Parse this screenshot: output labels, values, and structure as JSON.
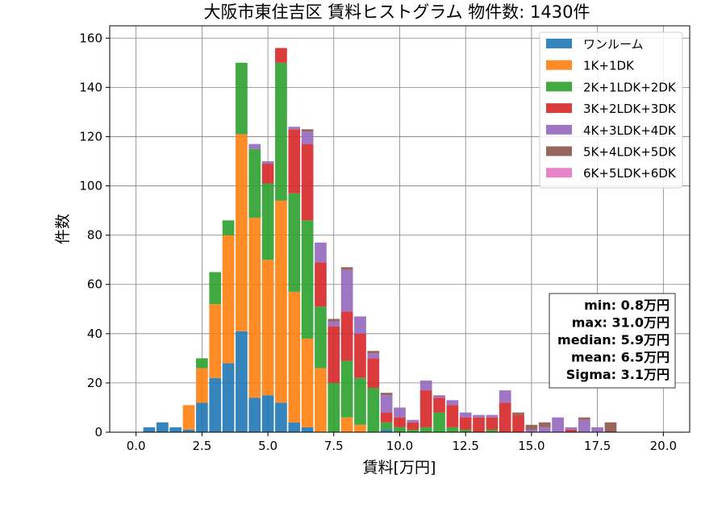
{
  "chart_data": {
    "type": "bar",
    "stacked": true,
    "title": "大阪市東住吉区 賃料ヒストグラム 物件数: 1430件",
    "xlabel": "賃料[万円]",
    "ylabel": "件数",
    "xlim": [
      -1.0,
      21.0
    ],
    "ylim": [
      0,
      165
    ],
    "xticks": [
      0.0,
      2.5,
      5.0,
      7.5,
      10.0,
      12.5,
      15.0,
      17.5,
      20.0
    ],
    "xtick_labels": [
      "0.0",
      "2.5",
      "5.0",
      "7.5",
      "10.0",
      "12.5",
      "15.0",
      "17.5",
      "20.0"
    ],
    "yticks": [
      0,
      20,
      40,
      60,
      80,
      100,
      120,
      140,
      160
    ],
    "ytick_labels": [
      "0",
      "20",
      "40",
      "60",
      "80",
      "100",
      "120",
      "140",
      "160"
    ],
    "grid": true,
    "legend_position": "top-right",
    "bin_width": 0.5,
    "x": [
      0.5,
      1.0,
      1.5,
      2.0,
      2.5,
      3.0,
      3.5,
      4.0,
      4.5,
      5.0,
      5.5,
      6.0,
      6.5,
      7.0,
      7.5,
      8.0,
      8.5,
      9.0,
      9.5,
      10.0,
      10.5,
      11.0,
      11.5,
      12.0,
      12.5,
      13.0,
      13.5,
      14.0,
      14.5,
      15.0,
      15.5,
      16.0,
      16.5,
      17.0,
      17.5,
      18.0
    ],
    "series": [
      {
        "name": "ワンルーム",
        "color": "#1f77b4",
        "values": [
          2,
          4,
          2,
          1,
          12,
          22,
          28,
          41,
          14,
          15,
          12,
          4,
          2,
          0,
          0,
          0,
          0,
          0,
          1,
          0,
          0,
          0,
          0,
          0,
          0,
          0,
          0,
          0,
          0,
          0,
          0,
          0,
          0,
          0,
          0,
          0
        ]
      },
      {
        "name": "1K+1DK",
        "color": "#ff7f0e",
        "values": [
          0,
          0,
          0,
          10,
          14,
          30,
          52,
          80,
          73,
          55,
          82,
          53,
          36,
          26,
          0,
          6,
          3,
          0,
          0,
          0,
          0,
          0,
          0,
          0,
          0,
          0,
          0,
          0,
          0,
          0,
          0,
          0,
          0,
          0,
          0,
          0
        ]
      },
      {
        "name": "2K+1LDK+2DK",
        "color": "#2ca02c",
        "values": [
          0,
          0,
          0,
          0,
          4,
          13,
          6,
          29,
          28,
          31,
          56,
          40,
          48,
          25,
          20,
          23,
          19,
          18,
          3,
          2,
          1,
          2,
          8,
          2,
          1,
          0,
          1,
          0,
          0,
          0,
          0,
          0,
          0,
          0,
          0,
          0
        ]
      },
      {
        "name": "3K+2LDK+3DK",
        "color": "#d62728",
        "values": [
          0,
          0,
          0,
          0,
          0,
          0,
          0,
          0,
          0,
          8,
          6,
          26,
          31,
          18,
          23,
          20,
          18,
          12,
          4,
          4,
          3,
          15,
          6,
          9,
          5,
          6,
          5,
          12,
          7,
          0,
          0,
          0,
          1,
          0,
          0,
          0
        ]
      },
      {
        "name": "4K+3LDK+4DK",
        "color": "#9467bd",
        "values": [
          0,
          0,
          0,
          0,
          0,
          0,
          0,
          0,
          2,
          1,
          0,
          1,
          5,
          8,
          2,
          17,
          7,
          2,
          7,
          4,
          1,
          4,
          1,
          2,
          2,
          1,
          1,
          5,
          0,
          1,
          2,
          6,
          1,
          5,
          2,
          0
        ]
      },
      {
        "name": "5K+4LDK+5DK",
        "color": "#8c564b",
        "values": [
          0,
          0,
          0,
          0,
          0,
          0,
          0,
          0,
          0,
          0,
          0,
          0,
          1,
          0,
          1,
          1,
          0,
          1,
          1,
          0,
          0,
          0,
          0,
          0,
          0,
          0,
          0,
          0,
          1,
          2,
          2,
          0,
          0,
          1,
          0,
          4
        ]
      },
      {
        "name": "6K+5LDK+6DK",
        "color": "#e377c2",
        "values": [
          0,
          0,
          0,
          0,
          0,
          0,
          0,
          0,
          0,
          0,
          0,
          0,
          0,
          0,
          0,
          0,
          0,
          0,
          0,
          0,
          0,
          0,
          0,
          0,
          0,
          0,
          0,
          0,
          0,
          0,
          0,
          0,
          0,
          0,
          0,
          0
        ]
      }
    ],
    "stats": [
      "min: 0.8万円",
      "max: 31.0万円",
      "median: 5.9万円",
      "mean: 6.5万円",
      "Sigma: 3.1万円"
    ]
  }
}
